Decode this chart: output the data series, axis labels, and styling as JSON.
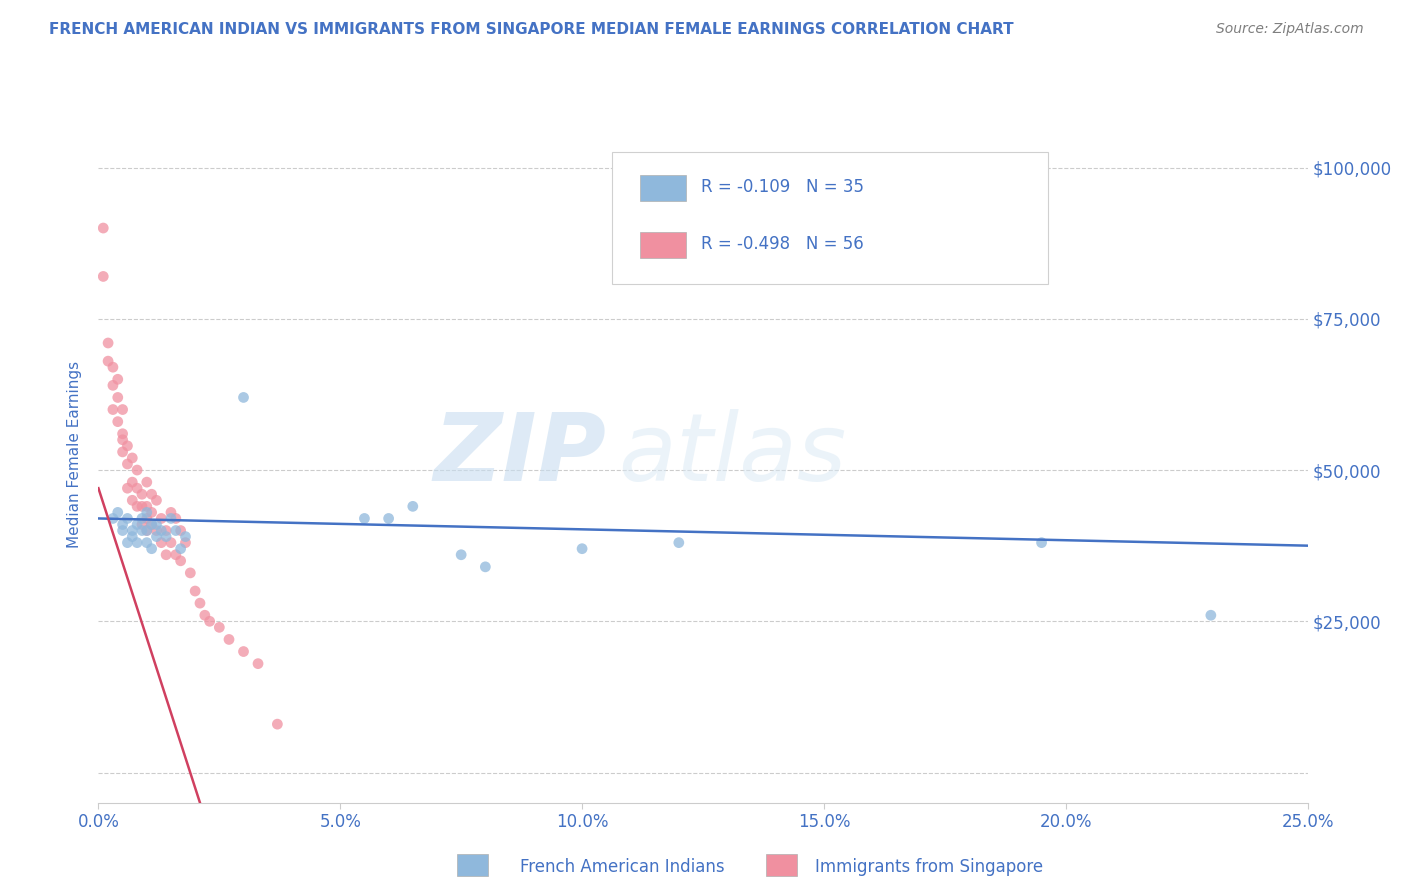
{
  "title": "FRENCH AMERICAN INDIAN VS IMMIGRANTS FROM SINGAPORE MEDIAN FEMALE EARNINGS CORRELATION CHART",
  "source": "Source: ZipAtlas.com",
  "ylabel": "Median Female Earnings",
  "xlim": [
    0.0,
    0.25
  ],
  "ylim": [
    -5000,
    110000
  ],
  "yticks": [
    0,
    25000,
    50000,
    75000,
    100000
  ],
  "ytick_labels": [
    "",
    "$25,000",
    "$50,000",
    "$75,000",
    "$100,000"
  ],
  "xtick_labels": [
    "0.0%",
    "5.0%",
    "10.0%",
    "15.0%",
    "20.0%",
    "25.0%"
  ],
  "xticks": [
    0.0,
    0.05,
    0.1,
    0.15,
    0.2,
    0.25
  ],
  "blue_color": "#8fb8dc",
  "pink_color": "#f090a0",
  "blue_line_color": "#4472c4",
  "pink_line_color": "#d04060",
  "watermark_zip": "ZIP",
  "watermark_atlas": "atlas",
  "blue_scatter_x": [
    0.003,
    0.004,
    0.005,
    0.005,
    0.006,
    0.006,
    0.007,
    0.007,
    0.008,
    0.008,
    0.009,
    0.009,
    0.01,
    0.01,
    0.01,
    0.011,
    0.011,
    0.012,
    0.012,
    0.013,
    0.014,
    0.015,
    0.016,
    0.017,
    0.018,
    0.03,
    0.055,
    0.06,
    0.065,
    0.075,
    0.08,
    0.1,
    0.12,
    0.195,
    0.23
  ],
  "blue_scatter_y": [
    42000,
    43000,
    40000,
    41000,
    38000,
    42000,
    40000,
    39000,
    41000,
    38000,
    40000,
    42000,
    38000,
    40000,
    43000,
    37000,
    41000,
    39000,
    41000,
    40000,
    39000,
    42000,
    40000,
    37000,
    39000,
    62000,
    42000,
    42000,
    44000,
    36000,
    34000,
    37000,
    38000,
    38000,
    26000
  ],
  "pink_scatter_x": [
    0.001,
    0.001,
    0.002,
    0.002,
    0.003,
    0.003,
    0.003,
    0.004,
    0.004,
    0.004,
    0.005,
    0.005,
    0.005,
    0.005,
    0.006,
    0.006,
    0.006,
    0.007,
    0.007,
    0.007,
    0.008,
    0.008,
    0.008,
    0.009,
    0.009,
    0.009,
    0.01,
    0.01,
    0.01,
    0.01,
    0.011,
    0.011,
    0.011,
    0.012,
    0.012,
    0.013,
    0.013,
    0.014,
    0.014,
    0.015,
    0.015,
    0.016,
    0.016,
    0.017,
    0.017,
    0.018,
    0.019,
    0.02,
    0.021,
    0.022,
    0.023,
    0.025,
    0.027,
    0.03,
    0.033,
    0.037
  ],
  "pink_scatter_y": [
    90000,
    82000,
    71000,
    68000,
    67000,
    64000,
    60000,
    65000,
    62000,
    58000,
    56000,
    53000,
    60000,
    55000,
    54000,
    51000,
    47000,
    52000,
    48000,
    45000,
    50000,
    47000,
    44000,
    46000,
    44000,
    41000,
    48000,
    44000,
    42000,
    40000,
    46000,
    43000,
    41000,
    45000,
    40000,
    42000,
    38000,
    40000,
    36000,
    43000,
    38000,
    42000,
    36000,
    40000,
    35000,
    38000,
    33000,
    30000,
    28000,
    26000,
    25000,
    24000,
    22000,
    20000,
    18000,
    8000
  ],
  "blue_trend_x": [
    0.0,
    0.25
  ],
  "blue_trend_y": [
    42000,
    37500
  ],
  "pink_trend_x": [
    0.0,
    0.021
  ],
  "pink_trend_y": [
    47000,
    -5000
  ],
  "background_color": "#ffffff",
  "grid_color": "#cccccc",
  "title_color": "#4472c4",
  "source_color": "#7f7f7f",
  "legend_r1": "R = -0.109   N = 35",
  "legend_r2": "R = -0.498   N = 56",
  "bottom_label1": "French American Indians",
  "bottom_label2": "Immigrants from Singapore"
}
